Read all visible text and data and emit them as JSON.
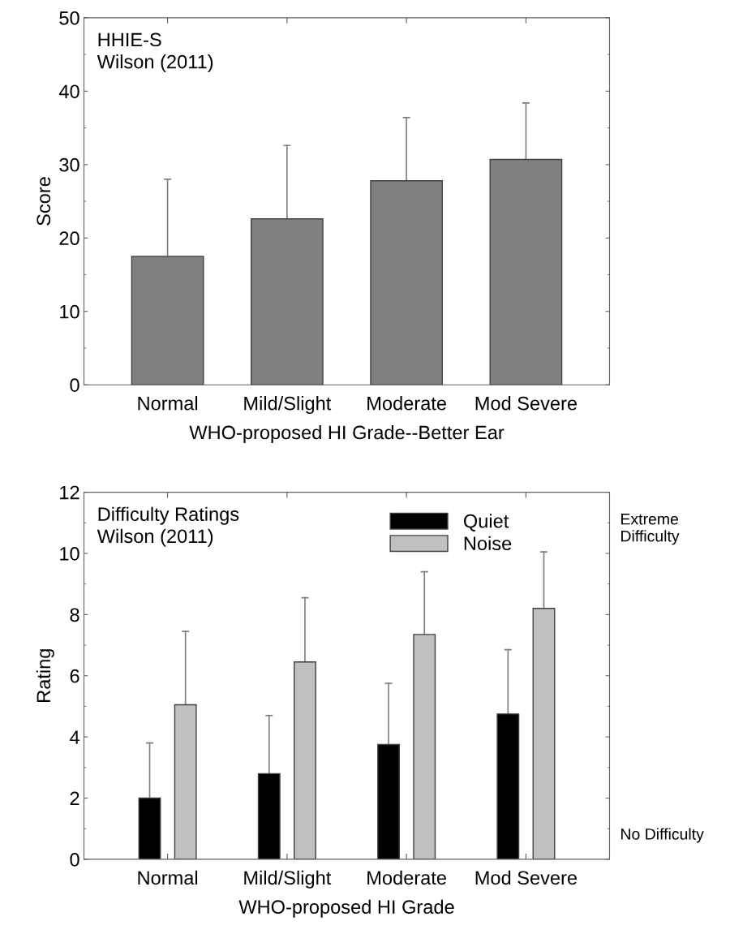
{
  "chart_data": [
    {
      "type": "bar",
      "title": "HHIE-S\nWilson (2011)",
      "xlabel": "WHO-proposed HI Grade--Better Ear",
      "ylabel": "Score",
      "categories": [
        "Normal",
        "Mild/Slight",
        "Moderate",
        "Mod Severe"
      ],
      "series": [
        {
          "color": "#808080",
          "values": [
            17.5,
            22.6,
            27.8,
            30.7
          ],
          "errors": [
            [
              17.5,
              28.0
            ],
            [
              22.6,
              32.6
            ],
            [
              27.8,
              36.4
            ],
            [
              30.7,
              38.4
            ]
          ]
        }
      ],
      "ylim": [
        0,
        50
      ],
      "yticks": [
        0,
        10,
        20,
        30,
        40,
        50
      ],
      "grid": false,
      "legend": false
    },
    {
      "type": "bar",
      "title": "Difficulty Ratings\nWilson (2011)",
      "xlabel": "WHO-proposed HI Grade",
      "ylabel": "Rating",
      "categories": [
        "Normal",
        "Mild/Slight",
        "Moderate",
        "Mod Severe"
      ],
      "series": [
        {
          "name": "Quiet",
          "color": "#000000",
          "values": [
            2.0,
            2.8,
            3.75,
            4.75
          ],
          "errors": [
            [
              2.0,
              3.8
            ],
            [
              2.8,
              4.7
            ],
            [
              3.75,
              5.75
            ],
            [
              4.75,
              6.85
            ]
          ]
        },
        {
          "name": "Noise",
          "color": "#c0c0c0",
          "values": [
            5.05,
            6.45,
            7.35,
            8.2
          ],
          "errors": [
            [
              5.05,
              7.45
            ],
            [
              6.45,
              8.55
            ],
            [
              7.35,
              9.4
            ],
            [
              8.2,
              10.05
            ]
          ]
        }
      ],
      "ylim": [
        0,
        12
      ],
      "yticks": [
        0,
        2,
        4,
        6,
        8,
        10,
        12
      ],
      "grid": false,
      "legend": "top",
      "annotations": [
        "Extreme\nDifficulty",
        "No Difficulty"
      ]
    }
  ]
}
